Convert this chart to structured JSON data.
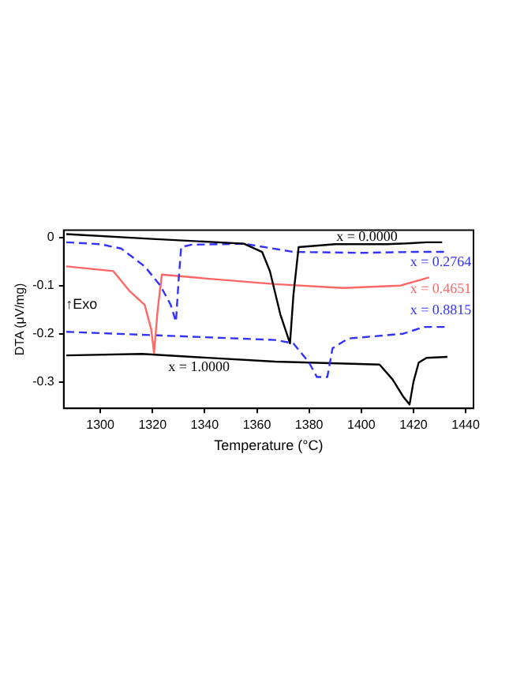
{
  "chart_data": {
    "type": "line",
    "xlabel": "Temperature (°C)",
    "ylabel": "DTA (μV/mg)",
    "xlim": [
      1286,
      1443
    ],
    "ylim": [
      -0.355,
      0.015
    ],
    "xticks": [
      1300,
      1320,
      1340,
      1360,
      1380,
      1400,
      1420,
      1440
    ],
    "yticks": [
      0,
      -0.1,
      -0.2,
      -0.3
    ],
    "grid": false,
    "legend": false,
    "marker": "none",
    "series": [
      {
        "color": "#000000",
        "line_style": "solid",
        "x": [
          1287,
          1320,
          1355,
          1362,
          1365,
          1369,
          1372.7,
          1374,
          1376,
          1390,
          1410,
          1419,
          1425,
          1431
        ],
        "values": [
          0.007,
          -0.003,
          -0.013,
          -0.03,
          -0.07,
          -0.16,
          -0.22,
          -0.12,
          -0.02,
          -0.014,
          -0.014,
          -0.012,
          -0.01,
          -0.01
        ]
      },
      {
        "color": "#3333ff",
        "line_style": "dashed",
        "x": [
          1287,
          1300,
          1308,
          1317,
          1323,
          1327,
          1329,
          1330,
          1331,
          1335,
          1355,
          1374,
          1400,
          1420,
          1433
        ],
        "values": [
          -0.01,
          -0.014,
          -0.023,
          -0.06,
          -0.1,
          -0.14,
          -0.175,
          -0.09,
          -0.02,
          -0.015,
          -0.013,
          -0.03,
          -0.032,
          -0.03,
          -0.03
        ]
      },
      {
        "color": "#ff6666",
        "line_style": "solid",
        "x": [
          1287,
          1305,
          1311,
          1317,
          1319.5,
          1320.6,
          1322,
          1323.6,
          1340,
          1367,
          1393,
          1415,
          1426
        ],
        "values": [
          -0.06,
          -0.07,
          -0.11,
          -0.14,
          -0.19,
          -0.24,
          -0.15,
          -0.077,
          -0.085,
          -0.097,
          -0.105,
          -0.1,
          -0.083
        ]
      },
      {
        "color": "#3333ff",
        "line_style": "dashed",
        "x": [
          1287,
          1330,
          1367,
          1374,
          1380,
          1383,
          1387,
          1389,
          1395,
          1416,
          1424,
          1433
        ],
        "values": [
          -0.196,
          -0.205,
          -0.213,
          -0.22,
          -0.26,
          -0.29,
          -0.29,
          -0.23,
          -0.21,
          -0.2,
          -0.186,
          -0.186
        ]
      },
      {
        "color": "#000000",
        "line_style": "solid",
        "x": [
          1287,
          1316,
          1367,
          1407,
          1412,
          1416,
          1418.5,
          1420,
          1422,
          1425,
          1433
        ],
        "values": [
          -0.245,
          -0.242,
          -0.258,
          -0.264,
          -0.295,
          -0.33,
          -0.347,
          -0.3,
          -0.26,
          -0.25,
          -0.248
        ]
      }
    ],
    "annotations": [
      "x = 0.0000",
      "x = 0.2764",
      "x = 0.4651",
      "x = 0.8815",
      "x = 1.0000",
      "↑Exo"
    ]
  }
}
